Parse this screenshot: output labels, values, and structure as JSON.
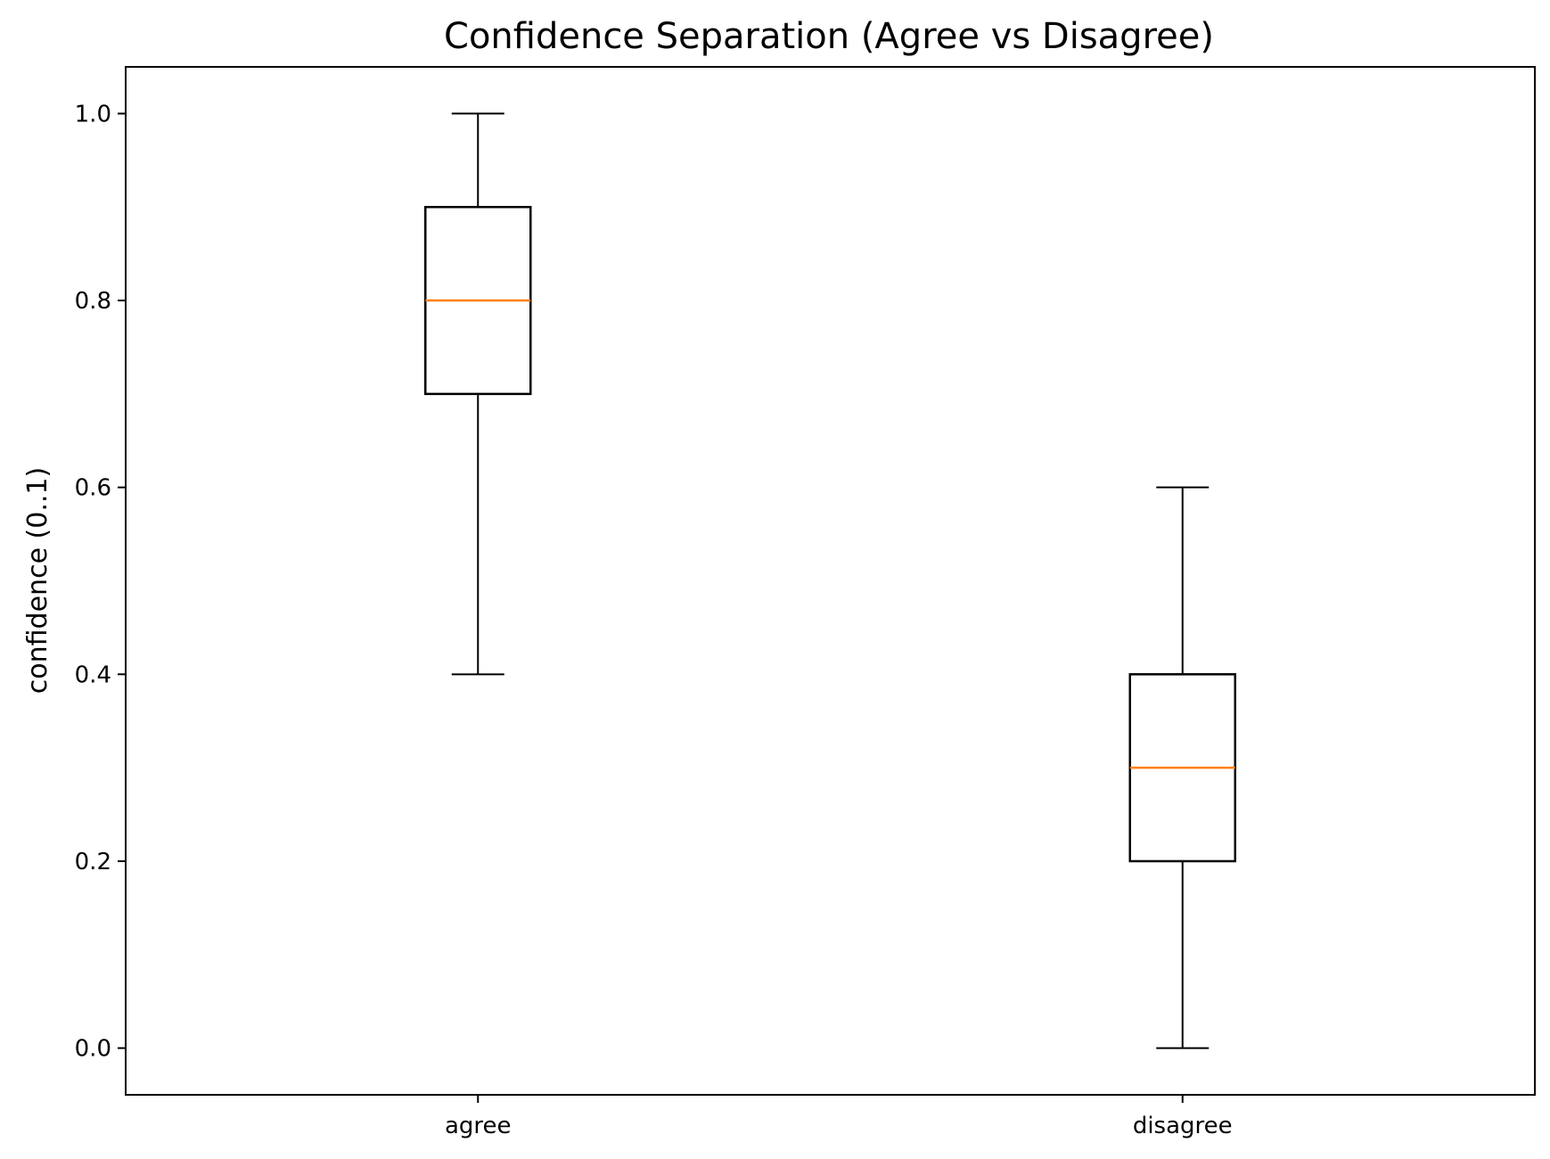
{
  "chart_data": {
    "type": "boxplot",
    "title": "Confidence Separation (Agree vs Disagree)",
    "xlabel": "",
    "ylabel": "confidence (0..1)",
    "categories": [
      "agree",
      "disagree"
    ],
    "boxes": [
      {
        "category": "agree",
        "whisker_low": 0.4,
        "q1": 0.7,
        "median": 0.8,
        "q3": 0.9,
        "whisker_high": 1.0
      },
      {
        "category": "disagree",
        "whisker_low": 0.0,
        "q1": 0.2,
        "median": 0.3,
        "q3": 0.4,
        "whisker_high": 0.6
      }
    ],
    "ylim": [
      -0.05,
      1.05
    ],
    "xlim": [
      0.5,
      2.5
    ],
    "yticks": [
      0.0,
      0.2,
      0.4,
      0.6,
      0.8,
      1.0
    ],
    "ytick_labels": [
      "0.0",
      "0.2",
      "0.4",
      "0.6",
      "0.8",
      "1.0"
    ],
    "grid": false,
    "legend": "none",
    "colors": {
      "box": "#000000",
      "median": "#ff7f0e",
      "axes": "#000000",
      "background": "#ffffff"
    }
  }
}
